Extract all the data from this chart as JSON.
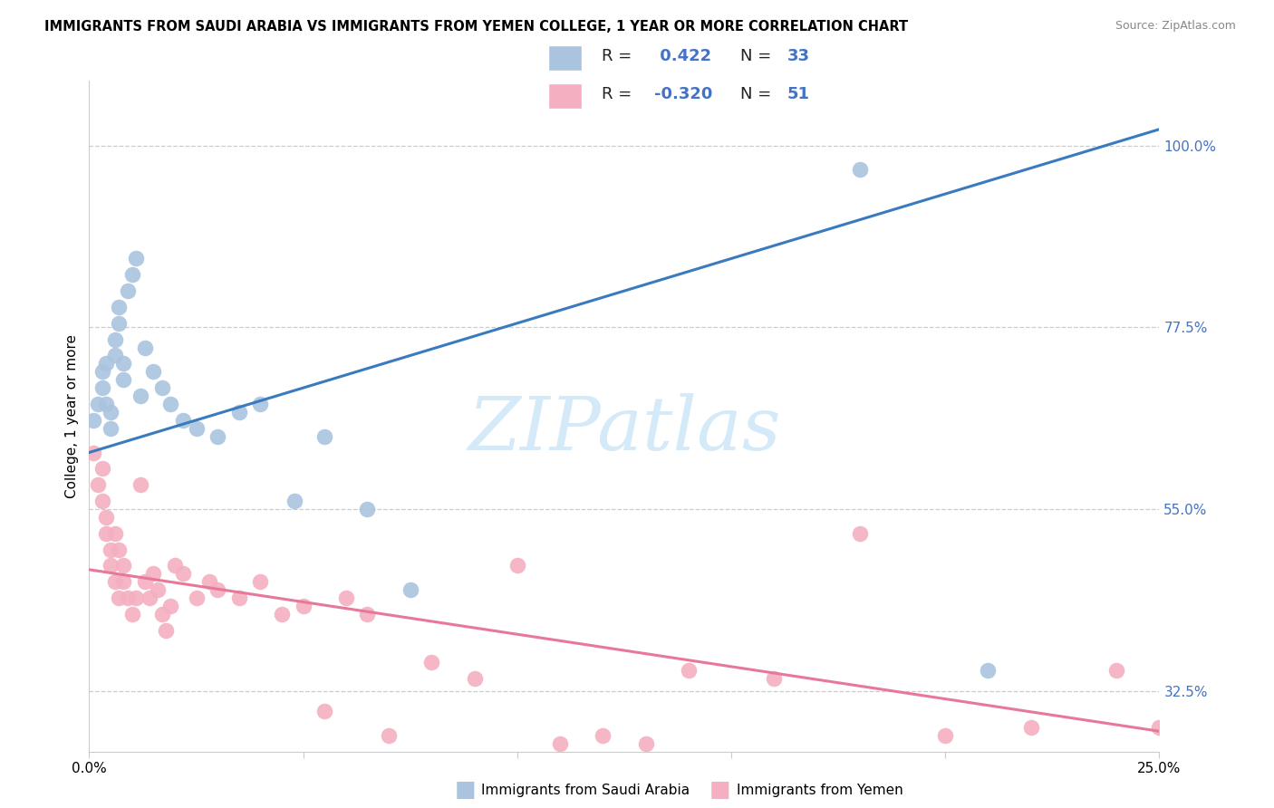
{
  "title": "IMMIGRANTS FROM SAUDI ARABIA VS IMMIGRANTS FROM YEMEN COLLEGE, 1 YEAR OR MORE CORRELATION CHART",
  "source": "Source: ZipAtlas.com",
  "ylabel": "College, 1 year or more",
  "x_min": 0.0,
  "x_max": 0.25,
  "y_min": 0.25,
  "y_max": 1.08,
  "y_ticks": [
    0.325,
    0.55,
    0.775,
    1.0
  ],
  "y_tick_labels": [
    "32.5%",
    "55.0%",
    "77.5%",
    "100.0%"
  ],
  "x_ticks": [
    0.0,
    0.05,
    0.1,
    0.15,
    0.2,
    0.25
  ],
  "x_tick_labels": [
    "0.0%",
    "",
    "",
    "",
    "",
    "25.0%"
  ],
  "blue_R": "0.422",
  "blue_N": "33",
  "pink_R": "-0.320",
  "pink_N": "51",
  "blue_color": "#aac4df",
  "blue_edge_color": "#8ab0d0",
  "blue_line_color": "#3a7abf",
  "pink_color": "#f4afc0",
  "pink_edge_color": "#e090a8",
  "pink_line_color": "#e8789a",
  "watermark_color": "#d5eaf8",
  "blue_x": [
    0.001,
    0.002,
    0.003,
    0.003,
    0.004,
    0.004,
    0.005,
    0.005,
    0.006,
    0.006,
    0.007,
    0.007,
    0.008,
    0.008,
    0.009,
    0.01,
    0.011,
    0.012,
    0.013,
    0.015,
    0.017,
    0.019,
    0.022,
    0.025,
    0.03,
    0.035,
    0.04,
    0.048,
    0.055,
    0.065,
    0.075,
    0.18,
    0.21
  ],
  "blue_y": [
    0.66,
    0.68,
    0.7,
    0.72,
    0.68,
    0.73,
    0.65,
    0.67,
    0.74,
    0.76,
    0.78,
    0.8,
    0.71,
    0.73,
    0.82,
    0.84,
    0.86,
    0.69,
    0.75,
    0.72,
    0.7,
    0.68,
    0.66,
    0.65,
    0.64,
    0.67,
    0.68,
    0.56,
    0.64,
    0.55,
    0.45,
    0.97,
    0.35
  ],
  "pink_x": [
    0.001,
    0.002,
    0.003,
    0.003,
    0.004,
    0.004,
    0.005,
    0.005,
    0.006,
    0.006,
    0.007,
    0.007,
    0.008,
    0.008,
    0.009,
    0.01,
    0.011,
    0.012,
    0.013,
    0.014,
    0.015,
    0.016,
    0.017,
    0.018,
    0.019,
    0.02,
    0.022,
    0.025,
    0.028,
    0.03,
    0.035,
    0.04,
    0.045,
    0.05,
    0.055,
    0.06,
    0.065,
    0.07,
    0.08,
    0.09,
    0.1,
    0.11,
    0.12,
    0.13,
    0.14,
    0.16,
    0.18,
    0.2,
    0.22,
    0.24,
    0.25
  ],
  "pink_y": [
    0.62,
    0.58,
    0.56,
    0.6,
    0.54,
    0.52,
    0.5,
    0.48,
    0.52,
    0.46,
    0.5,
    0.44,
    0.46,
    0.48,
    0.44,
    0.42,
    0.44,
    0.58,
    0.46,
    0.44,
    0.47,
    0.45,
    0.42,
    0.4,
    0.43,
    0.48,
    0.47,
    0.44,
    0.46,
    0.45,
    0.44,
    0.46,
    0.42,
    0.43,
    0.3,
    0.44,
    0.42,
    0.27,
    0.36,
    0.34,
    0.48,
    0.26,
    0.27,
    0.26,
    0.35,
    0.34,
    0.52,
    0.27,
    0.28,
    0.35,
    0.28
  ],
  "blue_line_x0": 0.0,
  "blue_line_y0": 0.62,
  "blue_line_x1": 0.25,
  "blue_line_y1": 1.02,
  "pink_line_x0": 0.0,
  "pink_line_y0": 0.475,
  "pink_line_x1": 0.25,
  "pink_line_y1": 0.275
}
